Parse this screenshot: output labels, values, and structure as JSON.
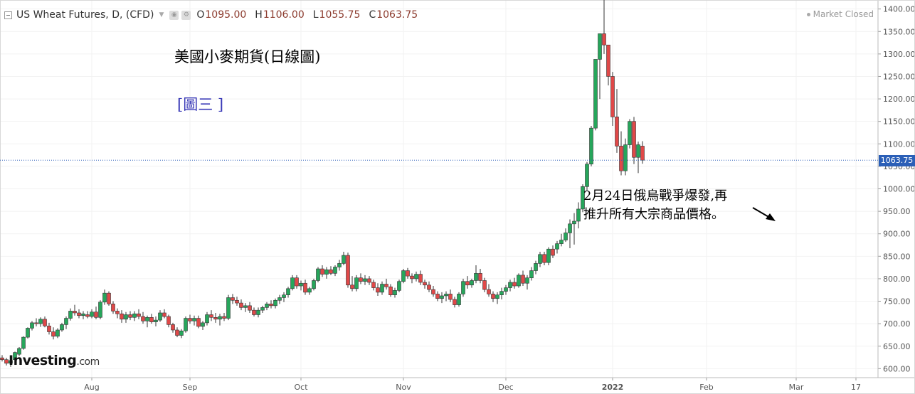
{
  "header": {
    "title": "US Wheat Futures, D, (CFD)",
    "open_label": "O",
    "open": "1095.00",
    "high_label": "H",
    "high": "1106.00",
    "low_label": "L",
    "low": "1055.75",
    "close_label": "C",
    "close": "1063.75",
    "market_status": "Market Closed"
  },
  "annotations": {
    "title": "美國小麥期貨(日線圖)",
    "figure_label": "[圖三 ]",
    "note_line1": "2月24日俄烏戰爭爆發,再",
    "note_line2": "推升所有大宗商品價格。"
  },
  "logo": {
    "brand": "Investing",
    "suffix": ".com"
  },
  "last_price_label": "1063.75",
  "colors": {
    "up": "#26a65b",
    "down": "#e04848",
    "last_line": "#2b5fb7",
    "grid": "#f2f2f2",
    "axis_text": "#555"
  },
  "chart_data": {
    "type": "candlestick",
    "y_axis": {
      "min": 580,
      "max": 1420,
      "ticks": [
        600,
        650,
        700,
        750,
        800,
        850,
        900,
        950,
        1000,
        1050,
        1100,
        1150,
        1200,
        1250,
        1300,
        1350,
        1400
      ]
    },
    "x_axis": {
      "ticks": [
        {
          "label": "Aug",
          "index": 21
        },
        {
          "label": "Sep",
          "index": 44
        },
        {
          "label": "Oct",
          "index": 70
        },
        {
          "label": "Nov",
          "index": 94
        },
        {
          "label": "Dec",
          "index": 118
        },
        {
          "label": "2022",
          "index": 143
        },
        {
          "label": "Feb",
          "index": 165
        },
        {
          "label": "Mar",
          "index": 186
        },
        {
          "label": "17",
          "index": 200
        }
      ]
    },
    "last_price": 1063.75,
    "candles": [
      [
        624,
        630,
        616,
        620
      ],
      [
        620,
        624,
        607,
        612
      ],
      [
        612,
        622,
        604,
        618
      ],
      [
        620,
        638,
        617,
        636
      ],
      [
        632,
        648,
        628,
        645
      ],
      [
        645,
        672,
        642,
        670
      ],
      [
        670,
        692,
        667,
        690
      ],
      [
        690,
        706,
        685,
        702
      ],
      [
        702,
        712,
        694,
        700
      ],
      [
        700,
        714,
        693,
        710
      ],
      [
        710,
        716,
        692,
        695
      ],
      [
        695,
        702,
        676,
        682
      ],
      [
        682,
        692,
        665,
        672
      ],
      [
        672,
        690,
        668,
        686
      ],
      [
        686,
        702,
        682,
        698
      ],
      [
        698,
        716,
        688,
        712
      ],
      [
        712,
        734,
        707,
        728
      ],
      [
        728,
        742,
        718,
        724
      ],
      [
        724,
        732,
        712,
        718
      ],
      [
        718,
        728,
        710,
        722
      ],
      [
        720,
        728,
        712,
        716
      ],
      [
        716,
        732,
        712,
        726
      ],
      [
        726,
        738,
        710,
        714
      ],
      [
        714,
        752,
        710,
        748
      ],
      [
        748,
        776,
        742,
        768
      ],
      [
        768,
        772,
        740,
        744
      ],
      [
        744,
        750,
        722,
        728
      ],
      [
        728,
        734,
        712,
        722
      ],
      [
        722,
        730,
        702,
        710
      ],
      [
        710,
        726,
        702,
        720
      ],
      [
        720,
        728,
        708,
        714
      ],
      [
        714,
        728,
        706,
        722
      ],
      [
        722,
        732,
        710,
        716
      ],
      [
        716,
        726,
        700,
        706
      ],
      [
        706,
        718,
        692,
        714
      ],
      [
        714,
        722,
        700,
        704
      ],
      [
        704,
        716,
        694,
        708
      ],
      [
        708,
        730,
        704,
        724
      ],
      [
        724,
        732,
        712,
        716
      ],
      [
        716,
        720,
        692,
        698
      ],
      [
        698,
        702,
        680,
        686
      ],
      [
        686,
        692,
        670,
        674
      ],
      [
        674,
        688,
        668,
        684
      ],
      [
        684,
        716,
        680,
        712
      ],
      [
        712,
        720,
        700,
        706
      ],
      [
        706,
        718,
        696,
        712
      ],
      [
        712,
        718,
        690,
        694
      ],
      [
        694,
        706,
        686,
        702
      ],
      [
        702,
        726,
        696,
        720
      ],
      [
        720,
        730,
        706,
        714
      ],
      [
        714,
        724,
        702,
        710
      ],
      [
        710,
        722,
        696,
        716
      ],
      [
        716,
        724,
        706,
        712
      ],
      [
        712,
        764,
        708,
        758
      ],
      [
        758,
        766,
        744,
        752
      ],
      [
        752,
        760,
        740,
        746
      ],
      [
        746,
        754,
        730,
        736
      ],
      [
        736,
        746,
        726,
        740
      ],
      [
        740,
        748,
        724,
        730
      ],
      [
        730,
        736,
        716,
        720
      ],
      [
        720,
        736,
        714,
        730
      ],
      [
        730,
        740,
        724,
        736
      ],
      [
        736,
        748,
        730,
        744
      ],
      [
        744,
        752,
        734,
        740
      ],
      [
        740,
        756,
        734,
        752
      ],
      [
        752,
        764,
        744,
        758
      ],
      [
        758,
        770,
        748,
        764
      ],
      [
        764,
        782,
        758,
        778
      ],
      [
        778,
        808,
        774,
        802
      ],
      [
        802,
        808,
        778,
        784
      ],
      [
        784,
        796,
        774,
        790
      ],
      [
        790,
        798,
        764,
        770
      ],
      [
        770,
        782,
        764,
        778
      ],
      [
        778,
        800,
        774,
        796
      ],
      [
        796,
        826,
        792,
        822
      ],
      [
        822,
        830,
        804,
        810
      ],
      [
        810,
        826,
        800,
        820
      ],
      [
        820,
        828,
        808,
        812
      ],
      [
        812,
        830,
        806,
        826
      ],
      [
        826,
        842,
        818,
        834
      ],
      [
        834,
        860,
        830,
        852
      ],
      [
        852,
        858,
        780,
        786
      ],
      [
        786,
        806,
        772,
        778
      ],
      [
        778,
        808,
        772,
        802
      ],
      [
        802,
        812,
        788,
        794
      ],
      [
        794,
        808,
        786,
        800
      ],
      [
        800,
        806,
        786,
        792
      ],
      [
        792,
        798,
        774,
        780
      ],
      [
        780,
        790,
        762,
        770
      ],
      [
        770,
        794,
        764,
        788
      ],
      [
        788,
        800,
        776,
        782
      ],
      [
        782,
        788,
        760,
        764
      ],
      [
        764,
        780,
        758,
        774
      ],
      [
        774,
        798,
        770,
        794
      ],
      [
        794,
        822,
        790,
        818
      ],
      [
        818,
        824,
        800,
        806
      ],
      [
        806,
        812,
        790,
        800
      ],
      [
        800,
        816,
        794,
        810
      ],
      [
        810,
        818,
        786,
        792
      ],
      [
        792,
        798,
        778,
        786
      ],
      [
        786,
        794,
        770,
        776
      ],
      [
        776,
        784,
        760,
        766
      ],
      [
        766,
        772,
        750,
        756
      ],
      [
        756,
        770,
        746,
        762
      ],
      [
        762,
        772,
        750,
        766
      ],
      [
        766,
        776,
        748,
        754
      ],
      [
        754,
        760,
        736,
        742
      ],
      [
        742,
        770,
        738,
        766
      ],
      [
        766,
        800,
        760,
        794
      ],
      [
        794,
        806,
        778,
        786
      ],
      [
        786,
        800,
        780,
        796
      ],
      [
        796,
        830,
        790,
        812
      ],
      [
        812,
        822,
        790,
        796
      ],
      [
        796,
        802,
        770,
        776
      ],
      [
        776,
        788,
        760,
        766
      ],
      [
        766,
        772,
        748,
        756
      ],
      [
        756,
        770,
        744,
        764
      ],
      [
        764,
        780,
        754,
        772
      ],
      [
        772,
        786,
        764,
        780
      ],
      [
        780,
        798,
        772,
        792
      ],
      [
        792,
        802,
        778,
        784
      ],
      [
        784,
        812,
        780,
        808
      ],
      [
        808,
        818,
        784,
        790
      ],
      [
        790,
        808,
        776,
        802
      ],
      [
        802,
        826,
        796,
        818
      ],
      [
        818,
        840,
        810,
        834
      ],
      [
        834,
        860,
        826,
        854
      ],
      [
        854,
        860,
        830,
        836
      ],
      [
        836,
        870,
        830,
        866
      ],
      [
        866,
        874,
        846,
        852
      ]
    ]
  }
}
